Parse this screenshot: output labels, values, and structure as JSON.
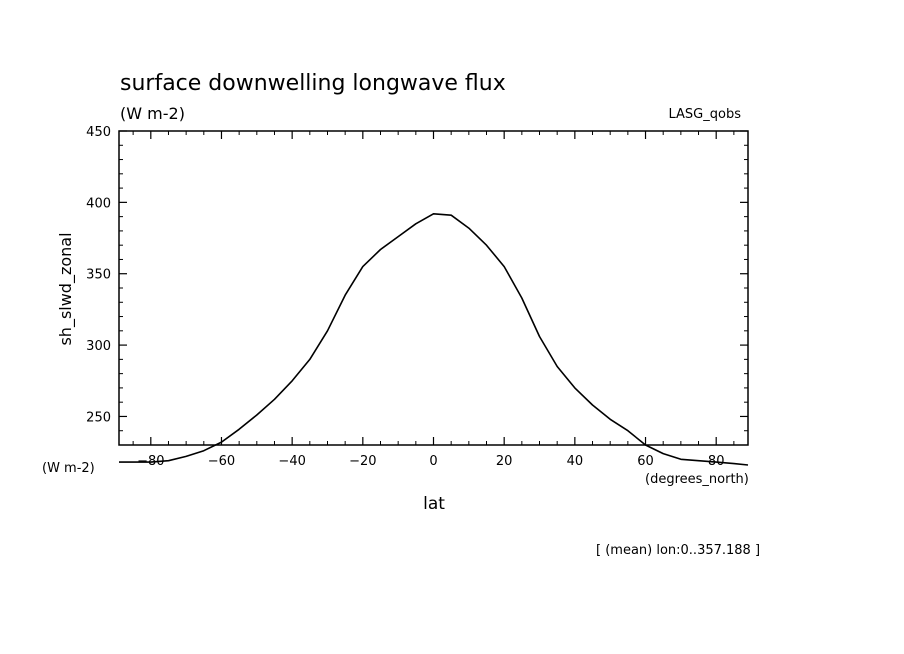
{
  "chart_data": {
    "type": "line",
    "title": "surface downwelling longwave flux",
    "units": "(W m-2)",
    "dataset": "LASG_qobs",
    "ylabel": "sh_slwd_zonal",
    "y_units": "(W m-2)",
    "xlabel": "lat",
    "x_units": "(degrees_north)",
    "footnote": "[ (mean) lon:0..357.188 ]",
    "xlim": [
      -89,
      89
    ],
    "ylim": [
      230,
      450
    ],
    "x_ticks": [
      -80,
      -60,
      -40,
      -20,
      0,
      20,
      40,
      60,
      80
    ],
    "y_ticks": [
      250,
      300,
      350,
      400,
      450
    ],
    "grid": false,
    "series": [
      {
        "x": [
          -89,
          -85,
          -80,
          -75,
          -70,
          -65,
          -60,
          -55,
          -50,
          -45,
          -40,
          -35,
          -30,
          -25,
          -20,
          -15,
          -10,
          -5,
          0,
          5,
          10,
          15,
          20,
          25,
          30,
          35,
          40,
          45,
          50,
          55,
          60,
          65,
          70,
          75,
          80,
          85,
          89
        ],
        "y": [
          218,
          218,
          218,
          219,
          222,
          226,
          232,
          241,
          251,
          262,
          275,
          290,
          310,
          335,
          355,
          367,
          376,
          385,
          392,
          391,
          382,
          370,
          355,
          333,
          306,
          285,
          270,
          258,
          248,
          240,
          230,
          224,
          220,
          219,
          218,
          217,
          216
        ]
      }
    ]
  }
}
